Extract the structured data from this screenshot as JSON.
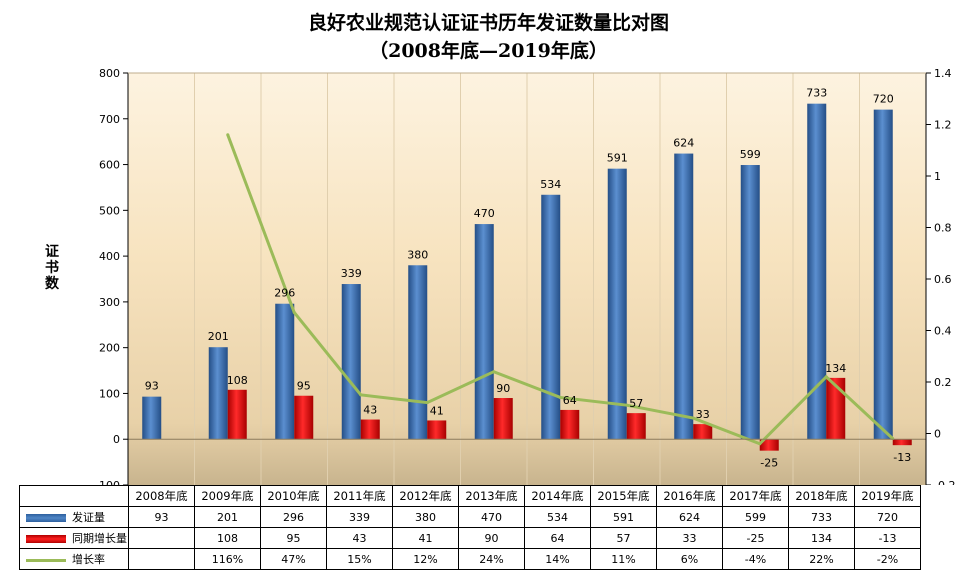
{
  "title_line1": "良好农业规范认证证书历年发证数量比对图",
  "title_line2": "（2008年底—2019年底）",
  "ylabel": [
    "证",
    "书",
    "数"
  ],
  "colors": {
    "issued": "#4f81bd",
    "increase": "#ff0000",
    "rate": "#9bbb59"
  },
  "chart_data": {
    "type": "bar",
    "title": "良好农业规范认证证书历年发证数量比对图（2008年底—2019年底）",
    "ylabel": "证书数",
    "categories": [
      "2008年底",
      "2009年底",
      "2010年底",
      "2011年底",
      "2012年底",
      "2013年底",
      "2014年底",
      "2015年底",
      "2016年底",
      "2017年底",
      "2018年底",
      "2019年底"
    ],
    "ylim": [
      -100,
      800
    ],
    "yticks": [
      "-100",
      "0",
      "100",
      "200",
      "300",
      "400",
      "500",
      "600",
      "700",
      "800"
    ],
    "y2lim": [
      -0.2,
      1.4
    ],
    "y2ticks": [
      "-0.2",
      "0",
      "0.2",
      "0.4",
      "0.6",
      "0.8",
      "1",
      "1.2",
      "1.4"
    ],
    "series": [
      {
        "name": "发证量",
        "kind": "bar",
        "values": [
          93,
          201,
          296,
          339,
          380,
          470,
          534,
          591,
          624,
          599,
          733,
          720
        ],
        "labels": [
          "93",
          "201",
          "296",
          "339",
          "380",
          "470",
          "534",
          "591",
          "624",
          "599",
          "733",
          "720"
        ]
      },
      {
        "name": "同期增长量",
        "kind": "bar",
        "values": [
          null,
          108,
          95,
          43,
          41,
          90,
          64,
          57,
          33,
          -25,
          134,
          -13
        ],
        "labels": [
          "",
          "108",
          "95",
          "43",
          "41",
          "90",
          "64",
          "57",
          "33",
          "-25",
          "134",
          "-13"
        ]
      },
      {
        "name": "增长率",
        "kind": "line",
        "axis": "secondary",
        "values": [
          null,
          1.16,
          0.47,
          0.15,
          0.12,
          0.24,
          0.14,
          0.11,
          0.06,
          -0.04,
          0.22,
          -0.02
        ],
        "labels": [
          "",
          "116%",
          "47%",
          "15%",
          "12%",
          "24%",
          "14%",
          "11%",
          "6%",
          "-4%",
          "22%",
          "-2%"
        ]
      }
    ]
  }
}
